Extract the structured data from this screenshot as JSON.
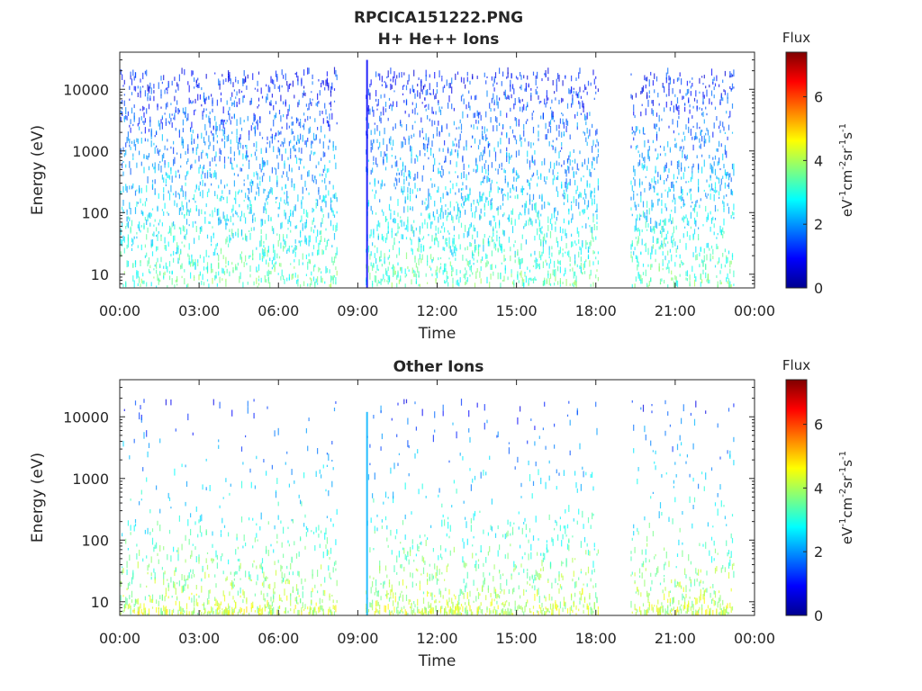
{
  "figure": {
    "title_line1": "RPCICA151222.PNG"
  },
  "chart_data": [
    {
      "type": "heatmap",
      "title": "H+ He++ Ions",
      "xlabel": "Time",
      "ylabel": "Energy (eV)",
      "x_ticks": [
        "00:00",
        "03:00",
        "06:00",
        "09:00",
        "12:00",
        "15:00",
        "18:00",
        "21:00",
        "00:00"
      ],
      "x_range_hours": [
        0,
        24
      ],
      "y_scale": "log",
      "y_range": [
        6,
        40000
      ],
      "y_ticks": [
        10,
        100,
        1000,
        10000
      ],
      "y_tick_labels": [
        "10",
        "100",
        "1000",
        "10000"
      ],
      "data_gaps_hours": [
        [
          8.2,
          9.3
        ],
        [
          18.1,
          19.3
        ]
      ],
      "data_end_hours": 23.2,
      "burst_hours": 9.35,
      "colorbar": {
        "title": "Flux",
        "ticks": [
          "0",
          "2",
          "4",
          "6"
        ],
        "range": [
          0,
          7.4
        ],
        "label_main": "eV",
        "label_sup1": "-1",
        "label_mid1": "cm",
        "label_sup2": "-2",
        "label_mid2": "sr",
        "label_sup3": "-1",
        "label_mid3": "s",
        "label_sup4": "-1",
        "colormap": "jet"
      }
    },
    {
      "type": "heatmap",
      "title": "Other Ions",
      "xlabel": "Time",
      "ylabel": "Energy (eV)",
      "x_ticks": [
        "00:00",
        "03:00",
        "06:00",
        "09:00",
        "12:00",
        "15:00",
        "18:00",
        "21:00",
        "00:00"
      ],
      "x_range_hours": [
        0,
        24
      ],
      "y_scale": "log",
      "y_range": [
        6,
        40000
      ],
      "y_ticks": [
        10,
        100,
        1000,
        10000
      ],
      "y_tick_labels": [
        "10",
        "100",
        "1000",
        "10000"
      ],
      "data_gaps_hours": [
        [
          8.2,
          9.3
        ],
        [
          18.1,
          19.3
        ]
      ],
      "data_end_hours": 23.2,
      "burst_hours": 9.35,
      "colorbar": {
        "title": "Flux",
        "ticks": [
          "0",
          "2",
          "4",
          "6"
        ],
        "range": [
          0,
          7.4
        ],
        "label_main": "eV",
        "label_sup1": "-1",
        "label_mid1": "cm",
        "label_sup2": "-2",
        "label_mid2": "sr",
        "label_sup3": "-1",
        "label_mid3": "s",
        "label_sup4": "-1",
        "colormap": "jet"
      }
    }
  ]
}
